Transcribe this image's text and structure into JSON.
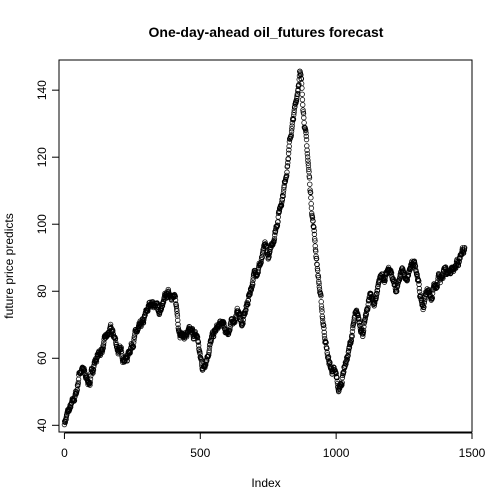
{
  "chart_data": {
    "type": "scatter",
    "title": "One-day-ahead oil_futures forecast",
    "xlabel": "Index",
    "ylabel": "future price predicts",
    "xlim": [
      -20,
      1500
    ],
    "ylim": [
      38,
      149
    ],
    "x_ticks": [
      0,
      500,
      1000,
      1500
    ],
    "y_ticks": [
      40,
      60,
      80,
      100,
      120,
      140
    ],
    "marker": "open-circle",
    "point_color": "#000000",
    "grid": false,
    "legend": "none",
    "n_points": 1474,
    "anchors": [
      [
        0,
        41
      ],
      [
        15,
        44
      ],
      [
        30,
        46
      ],
      [
        45,
        50
      ],
      [
        55,
        56
      ],
      [
        65,
        57
      ],
      [
        80,
        54
      ],
      [
        95,
        53
      ],
      [
        110,
        59
      ],
      [
        125,
        61
      ],
      [
        140,
        63
      ],
      [
        155,
        66
      ],
      [
        170,
        68
      ],
      [
        185,
        66
      ],
      [
        200,
        62
      ],
      [
        215,
        61
      ],
      [
        230,
        60
      ],
      [
        245,
        64
      ],
      [
        260,
        67
      ],
      [
        275,
        68
      ],
      [
        290,
        70
      ],
      [
        305,
        74
      ],
      [
        320,
        77
      ],
      [
        335,
        76
      ],
      [
        350,
        74
      ],
      [
        365,
        76
      ],
      [
        380,
        79
      ],
      [
        395,
        80
      ],
      [
        410,
        76
      ],
      [
        420,
        70
      ],
      [
        435,
        67
      ],
      [
        450,
        67
      ],
      [
        470,
        67
      ],
      [
        490,
        66
      ],
      [
        500,
        60
      ],
      [
        510,
        57
      ],
      [
        520,
        60
      ],
      [
        535,
        64
      ],
      [
        550,
        67
      ],
      [
        565,
        69
      ],
      [
        580,
        70
      ],
      [
        595,
        68
      ],
      [
        610,
        69
      ],
      [
        625,
        72
      ],
      [
        640,
        74
      ],
      [
        655,
        70
      ],
      [
        670,
        75
      ],
      [
        680,
        79
      ],
      [
        695,
        84
      ],
      [
        710,
        87
      ],
      [
        725,
        89
      ],
      [
        740,
        93
      ],
      [
        750,
        90
      ],
      [
        760,
        92
      ],
      [
        770,
        96
      ],
      [
        780,
        100
      ],
      [
        790,
        104
      ],
      [
        800,
        108
      ],
      [
        810,
        112
      ],
      [
        820,
        118
      ],
      [
        830,
        125
      ],
      [
        840,
        130
      ],
      [
        850,
        135
      ],
      [
        858,
        140
      ],
      [
        866,
        146
      ],
      [
        872,
        142
      ],
      [
        880,
        134
      ],
      [
        890,
        125
      ],
      [
        900,
        115
      ],
      [
        910,
        105
      ],
      [
        920,
        97
      ],
      [
        930,
        88
      ],
      [
        940,
        80
      ],
      [
        950,
        72
      ],
      [
        960,
        66
      ],
      [
        970,
        60
      ],
      [
        980,
        57
      ],
      [
        990,
        56
      ],
      [
        1000,
        54
      ],
      [
        1010,
        50
      ],
      [
        1020,
        53
      ],
      [
        1030,
        58
      ],
      [
        1040,
        60
      ],
      [
        1050,
        63
      ],
      [
        1060,
        68
      ],
      [
        1070,
        72
      ],
      [
        1080,
        72
      ],
      [
        1090,
        70
      ],
      [
        1100,
        68
      ],
      [
        1110,
        72
      ],
      [
        1120,
        77
      ],
      [
        1130,
        79
      ],
      [
        1140,
        76
      ],
      [
        1150,
        80
      ],
      [
        1160,
        84
      ],
      [
        1170,
        85
      ],
      [
        1180,
        83
      ],
      [
        1190,
        86
      ],
      [
        1200,
        85
      ],
      [
        1210,
        82
      ],
      [
        1220,
        80
      ],
      [
        1230,
        84
      ],
      [
        1240,
        86
      ],
      [
        1250,
        85
      ],
      [
        1260,
        82
      ],
      [
        1270,
        86
      ],
      [
        1280,
        87
      ],
      [
        1290,
        89
      ],
      [
        1300,
        85
      ],
      [
        1310,
        78
      ],
      [
        1320,
        75
      ],
      [
        1330,
        79
      ],
      [
        1340,
        81
      ],
      [
        1350,
        78
      ],
      [
        1360,
        82
      ],
      [
        1370,
        80
      ],
      [
        1380,
        84
      ],
      [
        1390,
        83
      ],
      [
        1400,
        86
      ],
      [
        1410,
        86
      ],
      [
        1420,
        87
      ],
      [
        1430,
        88
      ],
      [
        1440,
        89
      ],
      [
        1450,
        89
      ],
      [
        1460,
        92
      ],
      [
        1470,
        93
      ]
    ]
  }
}
